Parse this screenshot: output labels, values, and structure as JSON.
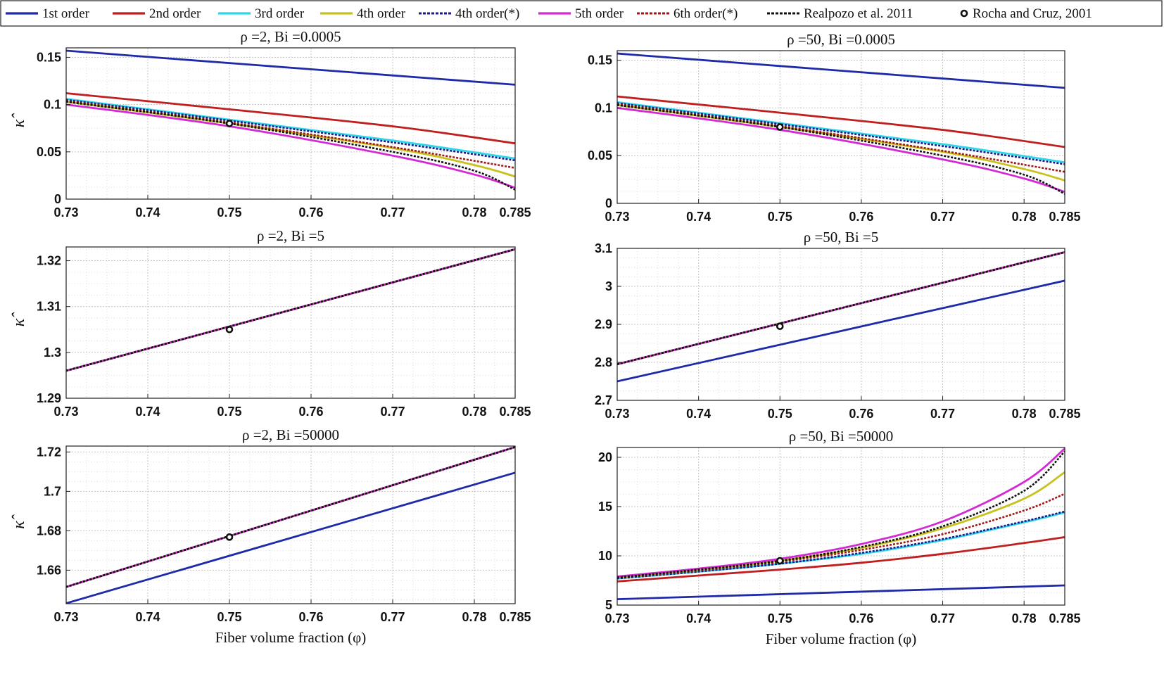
{
  "legend": [
    {
      "label": "1st order",
      "color": "#1f2aa8",
      "dash": "solid"
    },
    {
      "label": "2nd order",
      "color": "#c01f1f",
      "dash": "solid"
    },
    {
      "label": "3rd order",
      "color": "#2fd8e8",
      "dash": "solid"
    },
    {
      "label": "4th order",
      "color": "#c8c21f",
      "dash": "solid"
    },
    {
      "label": "4th order(*)",
      "color": "#1a1a8c",
      "dash": "dotted"
    },
    {
      "label": "5th order",
      "color": "#d42ad4",
      "dash": "solid"
    },
    {
      "label": "6th order(*)",
      "color": "#a01818",
      "dash": "dotted"
    },
    {
      "label": "Realpozo et al. 2011",
      "color": "#111111",
      "dash": "dotted"
    },
    {
      "label": "Rocha and Cruz, 2001",
      "color": "#111111",
      "dash": "marker"
    }
  ],
  "chart_data": [
    {
      "type": "line",
      "title": "ρ =2, Bi =0.0005",
      "ylabel": "κ̂",
      "xlabel": "",
      "xlim": [
        0.73,
        0.785
      ],
      "ylim": [
        0,
        0.16
      ],
      "xticks": [
        "0.73",
        "0.74",
        "0.75",
        "0.76",
        "0.77",
        "0.78",
        "0.785"
      ],
      "yticks": [
        "0",
        "0.05",
        "0.1",
        "0.15"
      ],
      "grid": true,
      "series": [
        {
          "name": "1st order",
          "x": [
            0.73,
            0.785
          ],
          "y": [
            0.157,
            0.121
          ]
        },
        {
          "name": "2nd order",
          "x": [
            0.73,
            0.75,
            0.77,
            0.785
          ],
          "y": [
            0.112,
            0.095,
            0.077,
            0.059
          ]
        },
        {
          "name": "3rd order",
          "x": [
            0.73,
            0.75,
            0.77,
            0.785
          ],
          "y": [
            0.106,
            0.084,
            0.062,
            0.043
          ]
        },
        {
          "name": "4th order",
          "x": [
            0.73,
            0.75,
            0.77,
            0.78,
            0.785
          ],
          "y": [
            0.103,
            0.08,
            0.054,
            0.036,
            0.024
          ]
        },
        {
          "name": "4th order(*)",
          "x": [
            0.73,
            0.75,
            0.77,
            0.785
          ],
          "y": [
            0.105,
            0.083,
            0.06,
            0.041
          ]
        },
        {
          "name": "5th order",
          "x": [
            0.73,
            0.75,
            0.77,
            0.78,
            0.785
          ],
          "y": [
            0.1,
            0.077,
            0.046,
            0.026,
            0.012
          ]
        },
        {
          "name": "6th order(*)",
          "x": [
            0.73,
            0.75,
            0.77,
            0.785
          ],
          "y": [
            0.104,
            0.081,
            0.055,
            0.033
          ]
        },
        {
          "name": "Realpozo et al. 2011",
          "x": [
            0.73,
            0.75,
            0.77,
            0.78,
            0.785
          ],
          "y": [
            0.103,
            0.08,
            0.05,
            0.03,
            0.01
          ]
        },
        {
          "name": "Rocha and Cruz, 2001",
          "type": "marker",
          "x": [
            0.75
          ],
          "y": [
            0.08
          ]
        }
      ]
    },
    {
      "type": "line",
      "title": "ρ =50, Bi =0.0005",
      "ylabel": "",
      "xlabel": "",
      "xlim": [
        0.73,
        0.785
      ],
      "ylim": [
        0,
        0.16
      ],
      "xticks": [
        "0.73",
        "0.74",
        "0.75",
        "0.76",
        "0.77",
        "0.78",
        "0.785"
      ],
      "yticks": [
        "0",
        "0.05",
        "0.1",
        "0.15"
      ],
      "grid": true,
      "series": [
        {
          "name": "1st order",
          "x": [
            0.73,
            0.785
          ],
          "y": [
            0.157,
            0.121
          ]
        },
        {
          "name": "2nd order",
          "x": [
            0.73,
            0.75,
            0.77,
            0.785
          ],
          "y": [
            0.112,
            0.095,
            0.077,
            0.059
          ]
        },
        {
          "name": "3rd order",
          "x": [
            0.73,
            0.75,
            0.77,
            0.785
          ],
          "y": [
            0.106,
            0.084,
            0.062,
            0.043
          ]
        },
        {
          "name": "4th order",
          "x": [
            0.73,
            0.75,
            0.77,
            0.78,
            0.785
          ],
          "y": [
            0.103,
            0.08,
            0.054,
            0.036,
            0.024
          ]
        },
        {
          "name": "4th order(*)",
          "x": [
            0.73,
            0.75,
            0.77,
            0.785
          ],
          "y": [
            0.105,
            0.083,
            0.06,
            0.041
          ]
        },
        {
          "name": "5th order",
          "x": [
            0.73,
            0.75,
            0.77,
            0.78,
            0.785
          ],
          "y": [
            0.1,
            0.077,
            0.046,
            0.026,
            0.012
          ]
        },
        {
          "name": "6th order(*)",
          "x": [
            0.73,
            0.75,
            0.77,
            0.785
          ],
          "y": [
            0.104,
            0.081,
            0.055,
            0.033
          ]
        },
        {
          "name": "Realpozo et al. 2011",
          "x": [
            0.73,
            0.75,
            0.77,
            0.78,
            0.785
          ],
          "y": [
            0.103,
            0.08,
            0.05,
            0.03,
            0.01
          ]
        },
        {
          "name": "Rocha and Cruz, 2001",
          "type": "marker",
          "x": [
            0.75
          ],
          "y": [
            0.08
          ]
        }
      ]
    },
    {
      "type": "line",
      "title": "ρ =2, Bi =5",
      "ylabel": "κ̂",
      "xlabel": "",
      "xlim": [
        0.73,
        0.785
      ],
      "ylim": [
        1.29,
        1.323
      ],
      "xticks": [
        "0.73",
        "0.74",
        "0.75",
        "0.76",
        "0.77",
        "0.78",
        "0.785"
      ],
      "yticks": [
        "1.29",
        "1.3",
        "1.31",
        "1.32"
      ],
      "grid": true,
      "series": [
        {
          "name": "1st order",
          "x": [
            0.73,
            0.785
          ],
          "y": [
            1.296,
            1.3225
          ]
        },
        {
          "name": "2nd order",
          "x": [
            0.73,
            0.785
          ],
          "y": [
            1.296,
            1.3225
          ]
        },
        {
          "name": "3rd order",
          "x": [
            0.73,
            0.785
          ],
          "y": [
            1.296,
            1.3225
          ]
        },
        {
          "name": "4th order",
          "x": [
            0.73,
            0.785
          ],
          "y": [
            1.296,
            1.3225
          ]
        },
        {
          "name": "4th order(*)",
          "x": [
            0.73,
            0.785
          ],
          "y": [
            1.296,
            1.3225
          ]
        },
        {
          "name": "5th order",
          "x": [
            0.73,
            0.785
          ],
          "y": [
            1.296,
            1.3225
          ]
        },
        {
          "name": "6th order(*)",
          "x": [
            0.73,
            0.785
          ],
          "y": [
            1.296,
            1.3225
          ]
        },
        {
          "name": "Realpozo et al. 2011",
          "x": [
            0.73,
            0.785
          ],
          "y": [
            1.296,
            1.3225
          ]
        },
        {
          "name": "Rocha and Cruz, 2001",
          "type": "marker",
          "x": [
            0.75
          ],
          "y": [
            1.305
          ]
        }
      ]
    },
    {
      "type": "line",
      "title": "ρ =50, Bi =5",
      "ylabel": "",
      "xlabel": "",
      "xlim": [
        0.73,
        0.785
      ],
      "ylim": [
        2.7,
        3.1
      ],
      "xticks": [
        "0.73",
        "0.74",
        "0.75",
        "0.76",
        "0.77",
        "0.78",
        "0.785"
      ],
      "yticks": [
        "2.7",
        "2.8",
        "2.9",
        "3",
        "3.1"
      ],
      "grid": true,
      "series": [
        {
          "name": "1st order",
          "x": [
            0.73,
            0.785
          ],
          "y": [
            2.75,
            3.015
          ]
        },
        {
          "name": "2nd order",
          "x": [
            0.73,
            0.785
          ],
          "y": [
            2.795,
            3.09
          ]
        },
        {
          "name": "3rd order",
          "x": [
            0.73,
            0.785
          ],
          "y": [
            2.795,
            3.09
          ]
        },
        {
          "name": "4th order",
          "x": [
            0.73,
            0.785
          ],
          "y": [
            2.795,
            3.09
          ]
        },
        {
          "name": "4th order(*)",
          "x": [
            0.73,
            0.785
          ],
          "y": [
            2.795,
            3.09
          ]
        },
        {
          "name": "5th order",
          "x": [
            0.73,
            0.785
          ],
          "y": [
            2.795,
            3.09
          ]
        },
        {
          "name": "6th order(*)",
          "x": [
            0.73,
            0.785
          ],
          "y": [
            2.795,
            3.09
          ]
        },
        {
          "name": "Realpozo et al. 2011",
          "x": [
            0.73,
            0.785
          ],
          "y": [
            2.795,
            3.09
          ]
        },
        {
          "name": "Rocha and Cruz, 2001",
          "type": "marker",
          "x": [
            0.75
          ],
          "y": [
            2.895
          ]
        }
      ]
    },
    {
      "type": "line",
      "title": "ρ =2, Bi =50000",
      "ylabel": "κ̂",
      "xlabel": "Fiber volume fraction (φ)",
      "xlim": [
        0.73,
        0.785
      ],
      "ylim": [
        1.643,
        1.723
      ],
      "xticks": [
        "0.73",
        "0.74",
        "0.75",
        "0.76",
        "0.77",
        "0.78",
        "0.785"
      ],
      "yticks": [
        "1.66",
        "1.68",
        "1.7",
        "1.72"
      ],
      "grid": true,
      "series": [
        {
          "name": "1st order",
          "x": [
            0.73,
            0.785
          ],
          "y": [
            1.6432,
            1.7095
          ]
        },
        {
          "name": "2nd order",
          "x": [
            0.73,
            0.785
          ],
          "y": [
            1.6515,
            1.7225
          ]
        },
        {
          "name": "3rd order",
          "x": [
            0.73,
            0.785
          ],
          "y": [
            1.6515,
            1.7225
          ]
        },
        {
          "name": "4th order",
          "x": [
            0.73,
            0.785
          ],
          "y": [
            1.6515,
            1.7225
          ]
        },
        {
          "name": "4th order(*)",
          "x": [
            0.73,
            0.785
          ],
          "y": [
            1.6515,
            1.7225
          ]
        },
        {
          "name": "5th order",
          "x": [
            0.73,
            0.785
          ],
          "y": [
            1.6515,
            1.7225
          ]
        },
        {
          "name": "6th order(*)",
          "x": [
            0.73,
            0.785
          ],
          "y": [
            1.6515,
            1.7225
          ]
        },
        {
          "name": "Realpozo et al. 2011",
          "x": [
            0.73,
            0.785
          ],
          "y": [
            1.6515,
            1.7225
          ]
        },
        {
          "name": "Rocha and Cruz, 2001",
          "type": "marker",
          "x": [
            0.75
          ],
          "y": [
            1.6768
          ]
        }
      ]
    },
    {
      "type": "line",
      "title": "ρ =50, Bi =50000",
      "ylabel": "",
      "xlabel": "Fiber volume fraction (φ)",
      "xlim": [
        0.73,
        0.785
      ],
      "ylim": [
        5,
        21
      ],
      "xticks": [
        "0.73",
        "0.74",
        "0.75",
        "0.76",
        "0.77",
        "0.78",
        "0.785"
      ],
      "yticks": [
        "5",
        "10",
        "15",
        "20"
      ],
      "grid": true,
      "series": [
        {
          "name": "1st order",
          "x": [
            0.73,
            0.785
          ],
          "y": [
            5.6,
            7.0
          ]
        },
        {
          "name": "2nd order",
          "x": [
            0.73,
            0.74,
            0.75,
            0.76,
            0.77,
            0.78,
            0.785
          ],
          "y": [
            7.4,
            8.0,
            8.6,
            9.3,
            10.2,
            11.3,
            11.9
          ]
        },
        {
          "name": "3rd order",
          "x": [
            0.73,
            0.74,
            0.75,
            0.76,
            0.77,
            0.78,
            0.785
          ],
          "y": [
            7.7,
            8.4,
            9.2,
            10.2,
            11.6,
            13.4,
            14.4
          ]
        },
        {
          "name": "4th order",
          "x": [
            0.73,
            0.74,
            0.75,
            0.76,
            0.77,
            0.78,
            0.785
          ],
          "y": [
            7.8,
            8.6,
            9.5,
            10.8,
            12.8,
            15.8,
            18.5
          ]
        },
        {
          "name": "4th order(*)",
          "x": [
            0.73,
            0.74,
            0.75,
            0.76,
            0.77,
            0.78,
            0.785
          ],
          "y": [
            7.7,
            8.4,
            9.2,
            10.3,
            11.7,
            13.5,
            14.5
          ]
        },
        {
          "name": "5th order",
          "x": [
            0.73,
            0.74,
            0.75,
            0.76,
            0.77,
            0.78,
            0.785
          ],
          "y": [
            7.9,
            8.7,
            9.7,
            11.2,
            13.5,
            17.5,
            20.9
          ]
        },
        {
          "name": "6th order(*)",
          "x": [
            0.73,
            0.74,
            0.75,
            0.76,
            0.77,
            0.78,
            0.785
          ],
          "y": [
            7.8,
            8.5,
            9.4,
            10.6,
            12.2,
            14.6,
            16.3
          ]
        },
        {
          "name": "Realpozo et al. 2011",
          "x": [
            0.73,
            0.74,
            0.75,
            0.76,
            0.77,
            0.78,
            0.785
          ],
          "y": [
            7.8,
            8.6,
            9.5,
            10.9,
            13.0,
            16.6,
            20.6
          ]
        },
        {
          "name": "Rocha and Cruz, 2001",
          "type": "marker",
          "x": [
            0.75
          ],
          "y": [
            9.5
          ]
        }
      ]
    }
  ]
}
